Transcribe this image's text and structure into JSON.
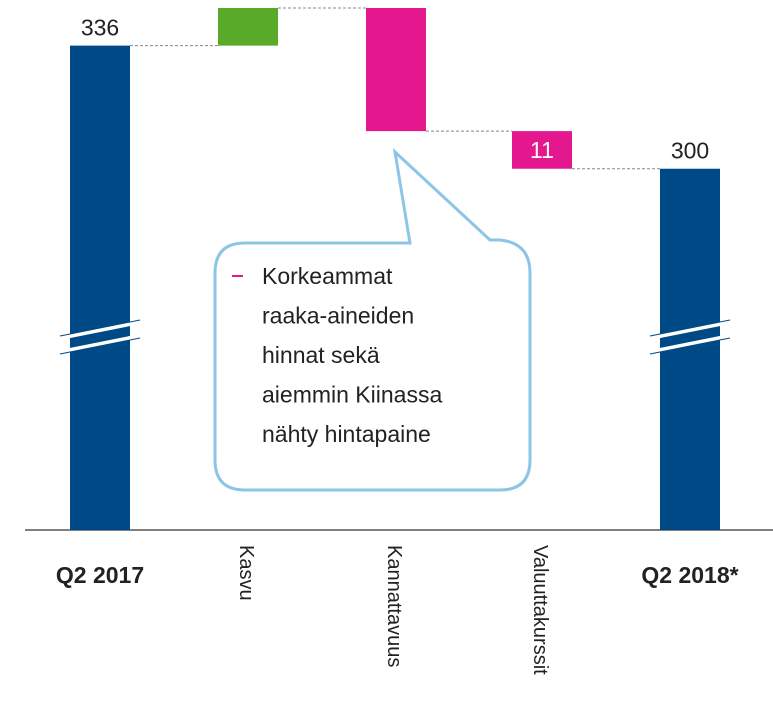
{
  "chart_data": {
    "type": "waterfall",
    "categories": [
      "Q2 2017",
      "Kasvu",
      "Kannattavuus",
      "Valuuttakurssit",
      "Q2 2018*"
    ],
    "values": [
      336,
      11,
      -36,
      -11,
      300
    ],
    "value_labels": [
      "336",
      null,
      null,
      "11",
      "300"
    ],
    "is_total": [
      true,
      false,
      false,
      false,
      true
    ],
    "total_color": "#004987",
    "increase_color": "#5aaa2a",
    "decrease_color": "#e5178f",
    "axis_break": true,
    "annotation": {
      "lines": [
        "Korkeammat",
        "raaka-aineiden",
        "hinnat sekä",
        "aiemmin Kiinassa",
        "nähty hintapaine"
      ]
    }
  }
}
